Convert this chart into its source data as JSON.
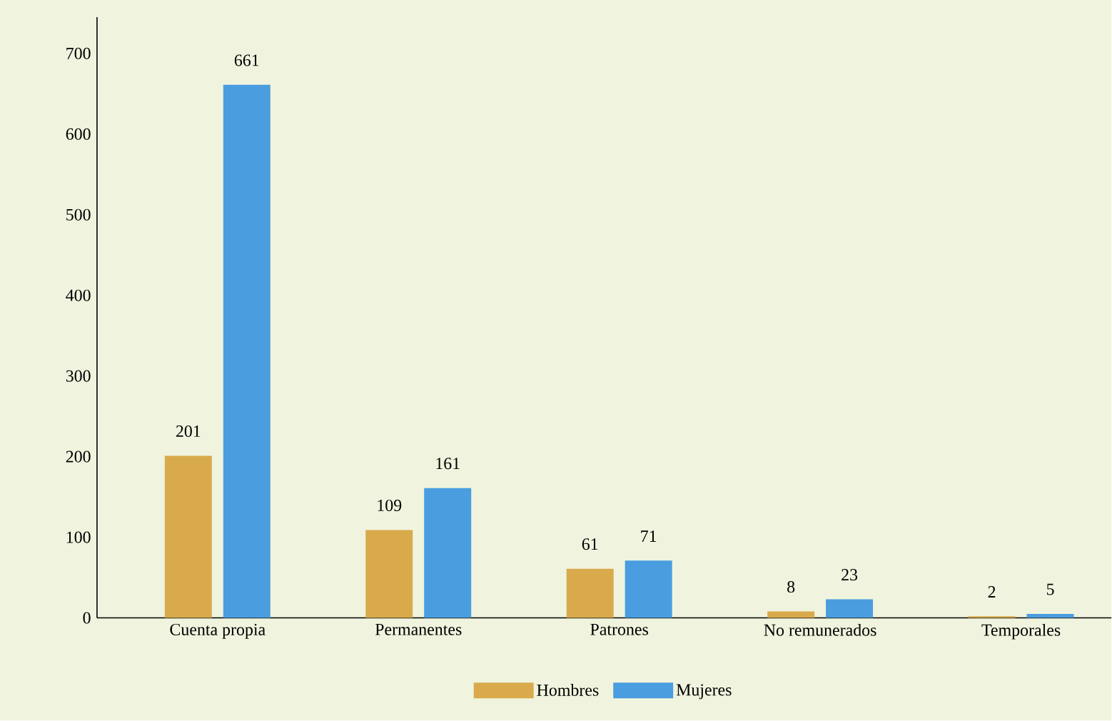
{
  "chart_data": {
    "type": "bar",
    "categories": [
      "Cuenta propia",
      "Permanentes",
      "Patrones",
      "No remunerados",
      "Temporales"
    ],
    "series": [
      {
        "name": "Hombres",
        "color": "#d9aa4c",
        "values": [
          201,
          109,
          61,
          8,
          2
        ]
      },
      {
        "name": "Mujeres",
        "color": "#4a9ddf",
        "values": [
          661,
          161,
          71,
          23,
          5
        ]
      }
    ],
    "ylim": [
      0,
      745
    ],
    "yticks": [
      0,
      100,
      200,
      300,
      400,
      500,
      600,
      700
    ],
    "data_labels": true,
    "grid": false,
    "legend": "bottom"
  }
}
